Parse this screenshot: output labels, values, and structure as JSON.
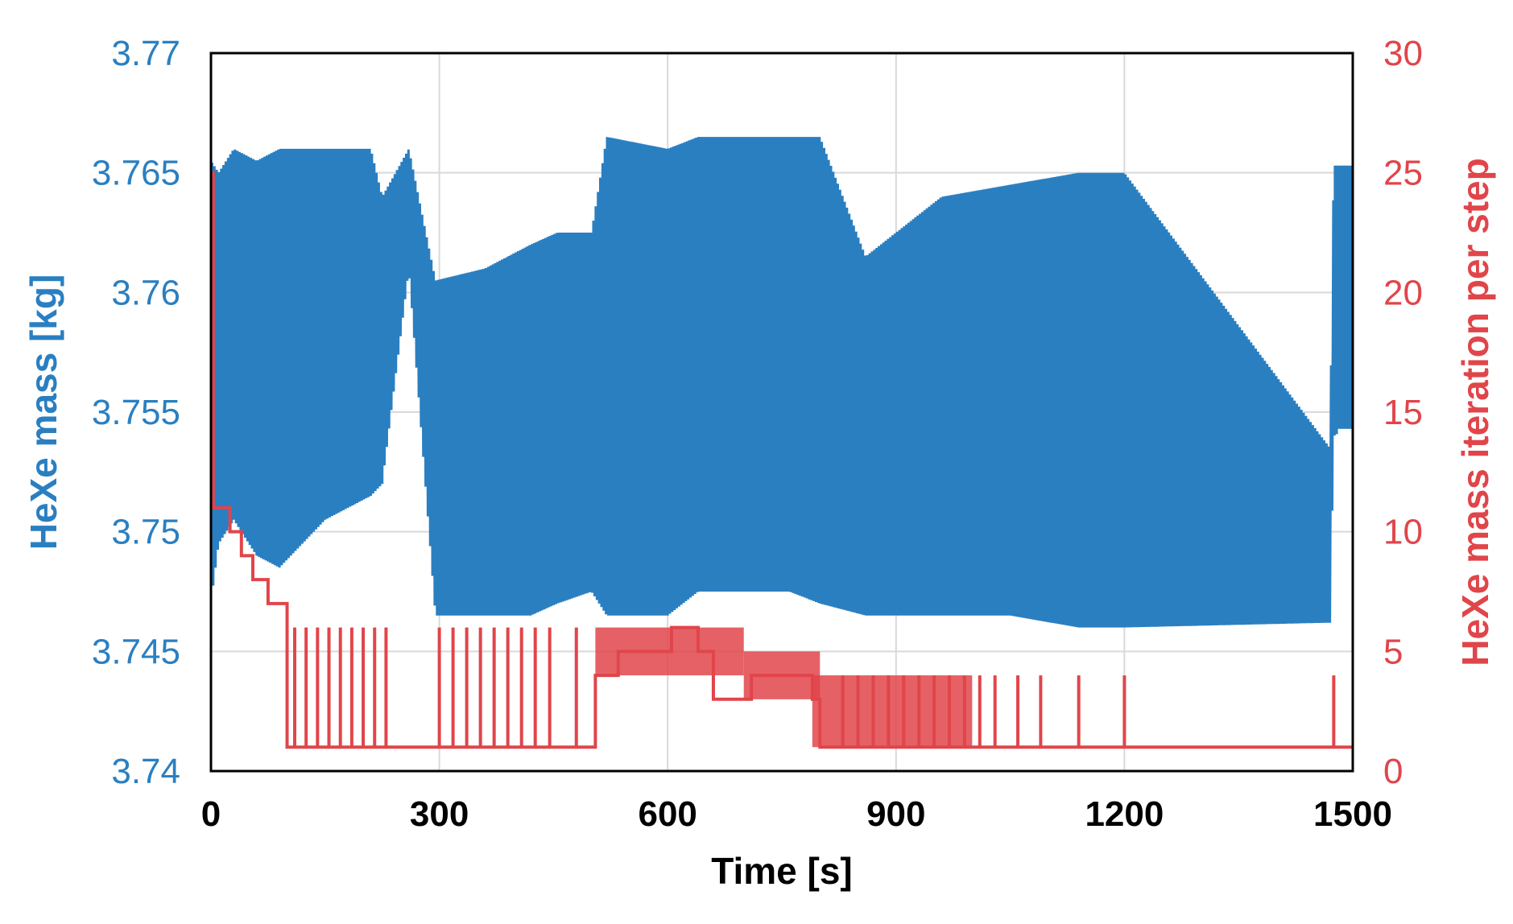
{
  "chart_data": {
    "type": "line",
    "xlabel": "Time [s]",
    "ylabel_left": "HeXe mass [kg]",
    "ylabel_right": "HeXe mass iteration per step",
    "xlim": [
      0,
      1500
    ],
    "ylim_left": [
      3.74,
      3.77
    ],
    "ylim_right": [
      0,
      30
    ],
    "x_ticks": [
      "0",
      "300",
      "600",
      "900",
      "1200",
      "1500"
    ],
    "y_left_ticks": [
      "3.74",
      "3.745",
      "3.75",
      "3.755",
      "3.76",
      "3.765",
      "3.77"
    ],
    "y_right_ticks": [
      "0",
      "5",
      "10",
      "15",
      "20",
      "25",
      "30"
    ],
    "grid": true,
    "colors": {
      "left": "#2a7fc1",
      "right": "#e0454a",
      "frame": "#000000",
      "grid": "#d9d9d9"
    },
    "series": [
      {
        "axis": "left",
        "envelope": [
          {
            "x": 0,
            "upper": 3.7655,
            "lower": 3.747
          },
          {
            "x": 10,
            "upper": 3.765,
            "lower": 3.7495
          },
          {
            "x": 30,
            "upper": 3.766,
            "lower": 3.7505
          },
          {
            "x": 60,
            "upper": 3.7655,
            "lower": 3.749
          },
          {
            "x": 90,
            "upper": 3.766,
            "lower": 3.7485
          },
          {
            "x": 150,
            "upper": 3.766,
            "lower": 3.7505
          },
          {
            "x": 210,
            "upper": 3.766,
            "lower": 3.7515
          },
          {
            "x": 225,
            "upper": 3.764,
            "lower": 3.752
          },
          {
            "x": 260,
            "upper": 3.766,
            "lower": 3.761
          },
          {
            "x": 295,
            "upper": 3.7605,
            "lower": 3.7465
          },
          {
            "x": 360,
            "upper": 3.761,
            "lower": 3.7465
          },
          {
            "x": 420,
            "upper": 3.762,
            "lower": 3.7465
          },
          {
            "x": 455,
            "upper": 3.7625,
            "lower": 3.747
          },
          {
            "x": 500,
            "upper": 3.7625,
            "lower": 3.7475
          },
          {
            "x": 520,
            "upper": 3.7665,
            "lower": 3.7465
          },
          {
            "x": 600,
            "upper": 3.766,
            "lower": 3.7465
          },
          {
            "x": 640,
            "upper": 3.7665,
            "lower": 3.7475
          },
          {
            "x": 700,
            "upper": 3.7665,
            "lower": 3.7475
          },
          {
            "x": 760,
            "upper": 3.7665,
            "lower": 3.7475
          },
          {
            "x": 800,
            "upper": 3.7665,
            "lower": 3.747
          },
          {
            "x": 860,
            "upper": 3.7615,
            "lower": 3.7465
          },
          {
            "x": 960,
            "upper": 3.764,
            "lower": 3.7465
          },
          {
            "x": 1050,
            "upper": 3.7645,
            "lower": 3.7465
          },
          {
            "x": 1140,
            "upper": 3.765,
            "lower": 3.746
          },
          {
            "x": 1200,
            "upper": 3.765,
            "lower": 3.746
          },
          {
            "x": 1470,
            "upper": 3.7535,
            "lower": 3.7462
          },
          {
            "x": 1475,
            "upper": 3.765,
            "lower": 3.754
          },
          {
            "x": 1500,
            "upper": 3.7655,
            "lower": 3.7545
          }
        ]
      },
      {
        "axis": "right",
        "baseline_steps": [
          {
            "x": 0,
            "y": 25
          },
          {
            "x": 3,
            "y": 11
          },
          {
            "x": 25,
            "y": 10
          },
          {
            "x": 40,
            "y": 9
          },
          {
            "x": 55,
            "y": 8
          },
          {
            "x": 75,
            "y": 7
          },
          {
            "x": 100,
            "y": 1
          },
          {
            "x": 505,
            "y": 4
          },
          {
            "x": 535,
            "y": 5
          },
          {
            "x": 605,
            "y": 6
          },
          {
            "x": 640,
            "y": 5
          },
          {
            "x": 660,
            "y": 3
          },
          {
            "x": 700,
            "y": 3
          },
          {
            "x": 710,
            "y": 4
          },
          {
            "x": 760,
            "y": 4
          },
          {
            "x": 790,
            "y": 3
          },
          {
            "x": 800,
            "y": 1
          },
          {
            "x": 1500,
            "y": 1
          }
        ],
        "spikes": [
          {
            "x": 110,
            "y": 6
          },
          {
            "x": 125,
            "y": 6
          },
          {
            "x": 140,
            "y": 6
          },
          {
            "x": 155,
            "y": 6
          },
          {
            "x": 170,
            "y": 6
          },
          {
            "x": 185,
            "y": 6
          },
          {
            "x": 200,
            "y": 6
          },
          {
            "x": 215,
            "y": 6
          },
          {
            "x": 230,
            "y": 6
          },
          {
            "x": 300,
            "y": 6
          },
          {
            "x": 318,
            "y": 6
          },
          {
            "x": 336,
            "y": 6
          },
          {
            "x": 354,
            "y": 6
          },
          {
            "x": 372,
            "y": 6
          },
          {
            "x": 390,
            "y": 6
          },
          {
            "x": 408,
            "y": 6
          },
          {
            "x": 426,
            "y": 6
          },
          {
            "x": 445,
            "y": 6
          },
          {
            "x": 480,
            "y": 6
          },
          {
            "x": 830,
            "y": 4
          },
          {
            "x": 850,
            "y": 4
          },
          {
            "x": 870,
            "y": 4
          },
          {
            "x": 890,
            "y": 4
          },
          {
            "x": 910,
            "y": 4
          },
          {
            "x": 930,
            "y": 4
          },
          {
            "x": 950,
            "y": 4
          },
          {
            "x": 970,
            "y": 4
          },
          {
            "x": 990,
            "y": 4
          },
          {
            "x": 1010,
            "y": 4
          },
          {
            "x": 1030,
            "y": 4
          },
          {
            "x": 1060,
            "y": 4
          },
          {
            "x": 1090,
            "y": 4
          },
          {
            "x": 1140,
            "y": 4
          },
          {
            "x": 1200,
            "y": 4
          },
          {
            "x": 1475,
            "y": 4
          }
        ]
      }
    ]
  }
}
